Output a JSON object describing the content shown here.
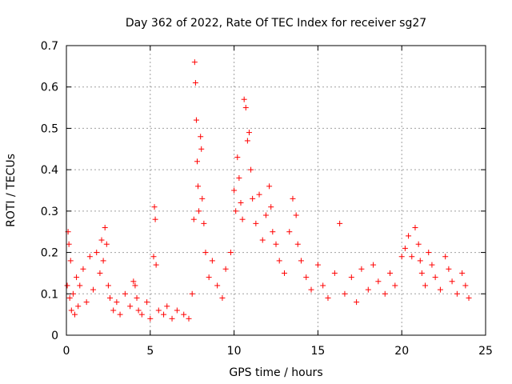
{
  "chart_data": {
    "type": "scatter",
    "title": "Day 362 of 2022, Rate Of TEC Index for receiver sg27",
    "xlabel": "GPS time / hours",
    "ylabel": "ROTI / TECUs",
    "xlim": [
      0,
      25
    ],
    "ylim": [
      0,
      0.7
    ],
    "xticks": [
      0,
      5,
      10,
      15,
      20,
      25
    ],
    "yticks": [
      0,
      0.1,
      0.2,
      0.3,
      0.4,
      0.5,
      0.6,
      0.7
    ],
    "xtick_labels": [
      "0",
      "5",
      "10",
      "15",
      "20",
      "25"
    ],
    "ytick_labels": [
      "0",
      "0.1",
      "0.2",
      "0.3",
      "0.4",
      "0.5",
      "0.6",
      "0.7"
    ],
    "grid": true,
    "marker": "+",
    "marker_color": "#ff0000",
    "series": [
      {
        "x": [
          0.05,
          0.1,
          0.15,
          0.2,
          0.25,
          0.3,
          0.4,
          0.5,
          0.6,
          0.7,
          0.8,
          1.0,
          1.2,
          1.4,
          1.6,
          1.8,
          2.0,
          2.1,
          2.2,
          2.3,
          2.4,
          2.5,
          2.6,
          2.8,
          3.0,
          3.2,
          3.5,
          3.8,
          4.0,
          4.1,
          4.2,
          4.3,
          4.5,
          4.8,
          5.0,
          5.2,
          5.25,
          5.3,
          5.35,
          5.5,
          5.8,
          6.0,
          6.3,
          6.6,
          7.0,
          7.3,
          7.5,
          7.6,
          7.65,
          7.7,
          7.75,
          7.8,
          7.85,
          7.9,
          8.0,
          8.05,
          8.1,
          8.2,
          8.3,
          8.5,
          8.7,
          9.0,
          9.3,
          9.5,
          9.8,
          10.0,
          10.1,
          10.2,
          10.3,
          10.4,
          10.5,
          10.6,
          10.7,
          10.8,
          10.9,
          11.0,
          11.1,
          11.3,
          11.5,
          11.7,
          11.9,
          12.1,
          12.2,
          12.3,
          12.5,
          12.7,
          13.0,
          13.3,
          13.5,
          13.7,
          13.8,
          14.0,
          14.3,
          14.6,
          15.0,
          15.3,
          15.6,
          16.0,
          16.3,
          16.6,
          17.0,
          17.3,
          17.6,
          18.0,
          18.3,
          18.6,
          19.0,
          19.3,
          19.6,
          20.0,
          20.2,
          20.4,
          20.6,
          20.8,
          21.0,
          21.1,
          21.2,
          21.4,
          21.6,
          21.8,
          22.0,
          22.3,
          22.6,
          22.8,
          23.0,
          23.3,
          23.6,
          23.8,
          24.0
        ],
        "y": [
          0.12,
          0.25,
          0.22,
          0.09,
          0.18,
          0.06,
          0.1,
          0.05,
          0.14,
          0.07,
          0.12,
          0.16,
          0.08,
          0.19,
          0.11,
          0.2,
          0.15,
          0.23,
          0.18,
          0.26,
          0.22,
          0.12,
          0.09,
          0.06,
          0.08,
          0.05,
          0.1,
          0.07,
          0.13,
          0.12,
          0.09,
          0.06,
          0.05,
          0.08,
          0.04,
          0.19,
          0.31,
          0.28,
          0.17,
          0.06,
          0.05,
          0.07,
          0.04,
          0.06,
          0.05,
          0.04,
          0.1,
          0.28,
          0.66,
          0.61,
          0.52,
          0.42,
          0.36,
          0.3,
          0.48,
          0.45,
          0.33,
          0.27,
          0.2,
          0.14,
          0.18,
          0.12,
          0.09,
          0.16,
          0.2,
          0.35,
          0.3,
          0.43,
          0.38,
          0.32,
          0.28,
          0.57,
          0.55,
          0.47,
          0.49,
          0.4,
          0.33,
          0.27,
          0.34,
          0.23,
          0.29,
          0.36,
          0.31,
          0.25,
          0.22,
          0.18,
          0.15,
          0.25,
          0.33,
          0.29,
          0.22,
          0.18,
          0.14,
          0.11,
          0.17,
          0.12,
          0.09,
          0.15,
          0.27,
          0.1,
          0.14,
          0.08,
          0.16,
          0.11,
          0.17,
          0.13,
          0.1,
          0.15,
          0.12,
          0.19,
          0.21,
          0.24,
          0.19,
          0.26,
          0.22,
          0.18,
          0.15,
          0.12,
          0.2,
          0.17,
          0.14,
          0.11,
          0.19,
          0.16,
          0.13,
          0.1,
          0.15,
          0.12,
          0.09
        ]
      }
    ]
  }
}
